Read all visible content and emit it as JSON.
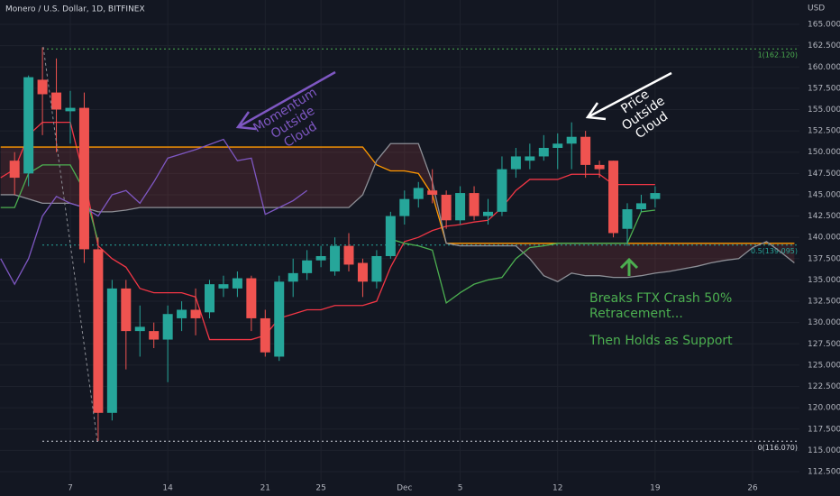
{
  "chart_data": {
    "type": "candlestick",
    "title": "Monero / U.S. Dollar, 1D, BITFINEX",
    "currency": "USD",
    "categories": [
      null,
      null,
      null,
      null,
      null,
      "7",
      null,
      null,
      null,
      null,
      null,
      null,
      "14",
      null,
      null,
      null,
      null,
      null,
      null,
      "21",
      null,
      null,
      null,
      "25",
      null,
      null,
      null,
      null,
      null,
      "Dec",
      null,
      null,
      null,
      "5",
      null,
      null,
      null,
      null,
      null,
      null,
      "12",
      null,
      null,
      null,
      null,
      null,
      null,
      "19",
      null,
      null,
      null,
      null,
      null,
      null,
      "26",
      null,
      null,
      null
    ],
    "open": [
      null,
      149,
      147.5,
      158.5,
      157,
      154.8,
      155.2,
      138.6,
      119.4,
      134,
      129,
      129,
      128,
      130.5,
      131.5,
      131.2,
      134,
      134,
      135.2,
      130.5,
      126,
      134.8,
      135.8,
      137.3,
      136,
      139,
      137,
      134.8,
      137.8,
      142.5,
      144.5,
      145.5,
      145,
      142,
      145.2,
      142.5,
      143,
      148,
      149,
      149.5,
      150.5,
      151,
      151.8,
      148.5,
      149,
      141,
      143.3,
      144.5,
      null,
      null,
      null,
      null,
      null,
      null,
      null,
      null,
      null,
      null
    ],
    "high": [
      null,
      150,
      159,
      162.3,
      161,
      157.2,
      157,
      140,
      135,
      135,
      132,
      130,
      132,
      132.5,
      134,
      135,
      135.5,
      136,
      135.5,
      131.5,
      135.5,
      137.5,
      138.5,
      139,
      140,
      140.5,
      137.5,
      138.5,
      143,
      145.5,
      146.5,
      148,
      145.5,
      146,
      146,
      144.5,
      149.5,
      150.5,
      151,
      152,
      152.2,
      153.5,
      152.5,
      149,
      149,
      144,
      145,
      146,
      null,
      null,
      null,
      null,
      null,
      null,
      null,
      null,
      null,
      null
    ],
    "low": [
      null,
      145,
      146,
      152,
      150,
      151,
      137,
      116.1,
      118.5,
      124.5,
      126,
      127,
      123,
      129,
      128.5,
      130.5,
      133,
      133,
      129,
      126,
      125.5,
      133,
      135,
      136.5,
      135.5,
      136,
      133,
      134,
      137.5,
      141.5,
      143.5,
      144,
      141,
      141.5,
      142,
      141.5,
      142.5,
      147,
      148,
      149,
      148,
      148,
      147,
      147,
      140,
      139,
      143,
      143.5,
      null,
      null,
      null,
      null,
      null,
      null,
      null,
      null,
      null,
      null
    ],
    "close": [
      null,
      147,
      158.8,
      156.8,
      155,
      155.2,
      138.6,
      119.4,
      134,
      129,
      129.5,
      128,
      131,
      131.5,
      130.5,
      134.5,
      134.5,
      135.2,
      130.5,
      126.5,
      134.8,
      135.8,
      137.3,
      137.8,
      139,
      136.8,
      134.8,
      137.8,
      142.5,
      144.5,
      145.8,
      145,
      142,
      145.2,
      142.5,
      143,
      148,
      149.5,
      149.5,
      150.5,
      151,
      151.8,
      148.5,
      148,
      140.5,
      143.3,
      144,
      145.2,
      null,
      null,
      null,
      null,
      null,
      null,
      null,
      null,
      null,
      null
    ],
    "up_color": "#26a69a",
    "down_color": "#ef5350",
    "series": [
      {
        "color": "#f23645",
        "values": [
          147,
          148,
          152,
          153.5,
          153.5,
          153.5,
          147,
          139,
          137.5,
          136.5,
          134,
          133.5,
          133.5,
          133.5,
          133,
          128,
          128,
          128,
          128,
          128.5,
          130.5,
          131,
          131.5,
          131.5,
          132,
          132,
          132,
          132.5,
          136.5,
          139.5,
          140,
          140.8,
          141.3,
          141.5,
          141.8,
          142,
          143.5,
          145.5,
          146.8,
          146.8,
          146.8,
          147.4,
          147.4,
          147.4,
          146.2,
          146.2,
          146.2,
          146.2,
          null,
          null,
          null,
          null,
          null,
          null,
          null,
          null,
          null,
          null
        ]
      },
      {
        "color": "#ff9800",
        "values": [
          150.6,
          150.6,
          150.6,
          150.6,
          150.6,
          150.6,
          150.6,
          150.6,
          150.6,
          150.6,
          150.6,
          150.6,
          150.6,
          150.6,
          150.6,
          150.6,
          150.6,
          150.6,
          150.6,
          150.6,
          150.6,
          150.6,
          150.6,
          150.6,
          150.6,
          150.6,
          150.6,
          148.5,
          147.8,
          147.8,
          147.5,
          145,
          139.3,
          139.3,
          139.3,
          139.3,
          139.3,
          139.3,
          139.3,
          139.3,
          139.3,
          139.3,
          139.3,
          139.3,
          139.3,
          139.3,
          139.3,
          139.3,
          139.3,
          139.3,
          139.3,
          139.3,
          139.3,
          139.3,
          139.3,
          139.3,
          139.3,
          139.3
        ]
      },
      {
        "color": "#8d8f96",
        "values": [
          145,
          145,
          144.5,
          144,
          144,
          144,
          143.5,
          143,
          143,
          143.2,
          143.5,
          143.5,
          143.5,
          143.5,
          143.5,
          143.5,
          143.5,
          143.5,
          143.5,
          143.5,
          143.5,
          143.5,
          143.5,
          143.5,
          143.5,
          143.5,
          145,
          149,
          151,
          151,
          151,
          146.5,
          139.3,
          139,
          139,
          139,
          139,
          139,
          137.5,
          135.5,
          134.8,
          135.8,
          135.5,
          135.5,
          135.3,
          135.3,
          135.5,
          135.8,
          136,
          136.3,
          136.6,
          137,
          137.3,
          137.5,
          138.8,
          139.5,
          138.3,
          137
        ]
      },
      {
        "color": "#4caf50",
        "values": [
          143.5,
          143.5,
          147.5,
          148.5,
          148.5,
          148.5,
          145.5,
          139.5,
          null,
          null,
          null,
          null,
          null,
          null,
          null,
          null,
          null,
          null,
          null,
          null,
          null,
          null,
          null,
          null,
          null,
          null,
          null,
          null,
          139.8,
          139.3,
          139,
          138.5,
          132.3,
          133.5,
          134.5,
          135,
          135.3,
          137.5,
          138.8,
          139,
          139.3,
          139.3,
          139.3,
          139.3,
          139.3,
          139.3,
          143,
          143.2,
          null,
          null,
          null,
          null,
          null,
          null,
          null,
          null,
          null,
          null
        ]
      },
      {
        "color": "#7e57c2",
        "values": [
          137.5,
          134.5,
          137.5,
          142.5,
          144.8,
          144,
          143.5,
          142.5,
          145,
          145.5,
          144,
          146.5,
          149.3,
          149.8,
          150.3,
          150.9,
          151.5,
          149,
          149.3,
          142.7,
          143.5,
          144.3,
          145.5,
          null,
          null,
          null,
          null,
          null,
          null,
          null,
          null,
          null,
          null,
          null,
          null,
          null,
          null,
          null,
          null,
          null,
          null,
          null,
          null,
          null,
          null,
          null,
          null,
          null,
          null,
          null,
          null,
          null,
          null,
          null,
          null,
          null,
          null,
          null
        ]
      }
    ],
    "cloud_color": "#ef5350",
    "levels": [
      {
        "value": 162.12,
        "label": "1(162.120)",
        "color": "#4caf50"
      },
      {
        "value": 139.095,
        "label": "0.5(139.095)",
        "color": "#26a69a"
      },
      {
        "value": 116.07,
        "label": "0(116.070)",
        "color": "#d1d4dc"
      }
    ],
    "ylim": [
      111.44,
      167.86
    ],
    "yticks": [
      {
        "value": 112.5,
        "label": "112.500"
      },
      {
        "value": 115,
        "label": "115.000"
      },
      {
        "value": 117.5,
        "label": "117.500"
      },
      {
        "value": 120,
        "label": "120.000"
      },
      {
        "value": 122.5,
        "label": "122.500"
      },
      {
        "value": 125,
        "label": "125.000"
      },
      {
        "value": 127.5,
        "label": "127.500"
      },
      {
        "value": 130,
        "label": "130.000"
      },
      {
        "value": 132.5,
        "label": "132.500"
      },
      {
        "value": 135,
        "label": "135.000"
      },
      {
        "value": 137.5,
        "label": "137.500"
      },
      {
        "value": 140,
        "label": "140.000"
      },
      {
        "value": 142.5,
        "label": "142.500"
      },
      {
        "value": 145,
        "label": "145.000"
      },
      {
        "value": 147.5,
        "label": "147.500"
      },
      {
        "value": 150,
        "label": "150.000"
      },
      {
        "value": 152.5,
        "label": "152.500"
      },
      {
        "value": 155,
        "label": "155.000"
      },
      {
        "value": 157.5,
        "label": "157.500"
      },
      {
        "value": 160,
        "label": "160.000"
      },
      {
        "value": 162.5,
        "label": "162.500"
      },
      {
        "value": 165,
        "label": "165.000"
      }
    ],
    "grid": true,
    "annotations": [
      {
        "lines": [
          "Momentum",
          "Outside",
          "Cloud"
        ],
        "color": "#7e57c2"
      },
      {
        "lines": [
          "Price",
          "Outside",
          "Cloud"
        ],
        "color": "#ffffff"
      },
      {
        "lines": [
          "Breaks FTX Crash 50%",
          "Retracement...",
          "Then Holds as Support"
        ],
        "color": "#4caf50"
      }
    ]
  }
}
